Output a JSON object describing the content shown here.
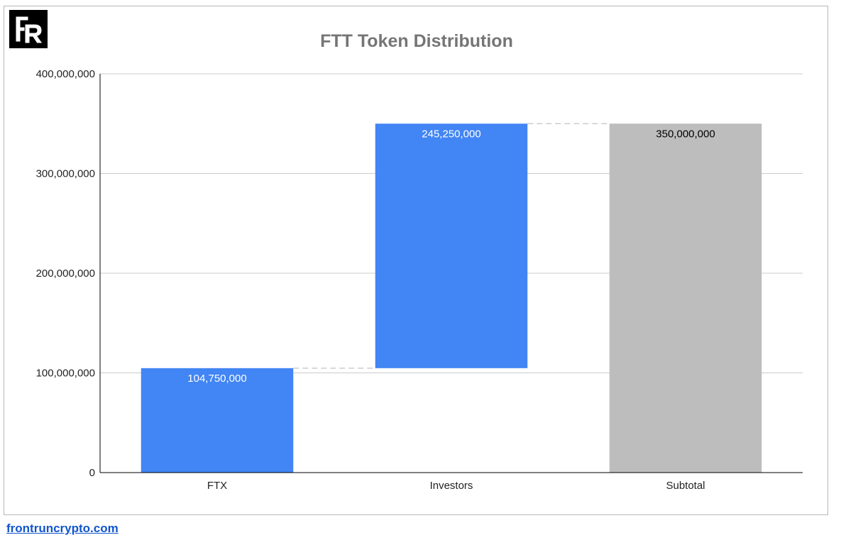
{
  "logo": {
    "text": "FR"
  },
  "footer": {
    "link_text": "frontruncrypto.com"
  },
  "colors": {
    "increase": "#4285f4",
    "subtotal": "#bdbdbd",
    "title": "#757575",
    "grid": "#cccccc",
    "connector": "#cccccc",
    "axis": "#000000",
    "label_on_increase": "#ffffff",
    "label_on_subtotal": "#000000",
    "link": "#1155cc"
  },
  "chart_data": {
    "type": "bar",
    "subtype": "waterfall",
    "title": "FTT Token Distribution",
    "xlabel": "",
    "ylabel": "",
    "categories": [
      "FTX",
      "Investors",
      "Subtotal"
    ],
    "values": [
      104750000,
      245250000,
      350000000
    ],
    "value_labels": [
      "104,750,000",
      "245,250,000",
      "350,000,000"
    ],
    "bar_kinds": [
      "increase",
      "increase",
      "subtotal"
    ],
    "ylim": [
      0,
      400000000
    ],
    "yticks": [
      0,
      100000000,
      200000000,
      300000000,
      400000000
    ],
    "ytick_labels": [
      "0",
      "100,000,000",
      "200,000,000",
      "300,000,000",
      "400,000,000"
    ],
    "grid": true,
    "legend": "none"
  }
}
